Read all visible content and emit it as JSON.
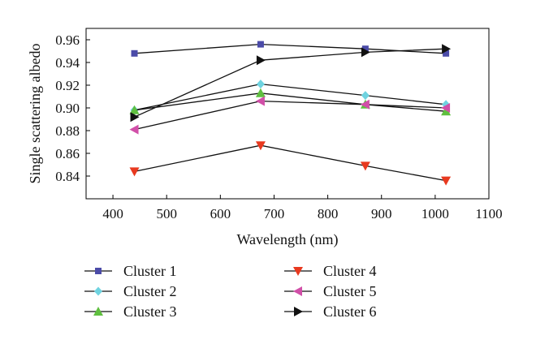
{
  "chart_data": {
    "type": "line",
    "xlabel": "Wavelength (nm)",
    "ylabel": "Single scattering albedo",
    "xlim": [
      350,
      1100
    ],
    "ylim": [
      0.82,
      0.97
    ],
    "xticks": [
      400,
      500,
      600,
      700,
      800,
      900,
      1000,
      1100
    ],
    "yticks": [
      0.84,
      0.86,
      0.88,
      0.9,
      0.92,
      0.94,
      0.96
    ],
    "ytick_labels": [
      "0.84",
      "0.86",
      "0.88",
      "0.90",
      "0.92",
      "0.94",
      "0.96"
    ],
    "grid": false,
    "legend_position": "bottom",
    "x": [
      440,
      675,
      870,
      1020
    ],
    "series": [
      {
        "name": "Cluster 1",
        "values": [
          0.948,
          0.956,
          0.952,
          0.948
        ],
        "marker": "square",
        "color": "#4b4ba8"
      },
      {
        "name": "Cluster 2",
        "values": [
          0.898,
          0.921,
          0.911,
          0.903
        ],
        "marker": "diamond",
        "color": "#6fd3e0"
      },
      {
        "name": "Cluster 3",
        "values": [
          0.898,
          0.913,
          0.903,
          0.897
        ],
        "marker": "triangle-up",
        "color": "#5fbf3f"
      },
      {
        "name": "Cluster 4",
        "values": [
          0.844,
          0.867,
          0.849,
          0.836
        ],
        "marker": "triangle-down",
        "color": "#e8391f"
      },
      {
        "name": "Cluster 5",
        "values": [
          0.881,
          0.906,
          0.903,
          0.9
        ],
        "marker": "triangle-left",
        "color": "#d14fa8"
      },
      {
        "name": "Cluster 6",
        "values": [
          0.892,
          0.942,
          0.949,
          0.952
        ],
        "marker": "triangle-right",
        "color": "#111111"
      }
    ]
  }
}
